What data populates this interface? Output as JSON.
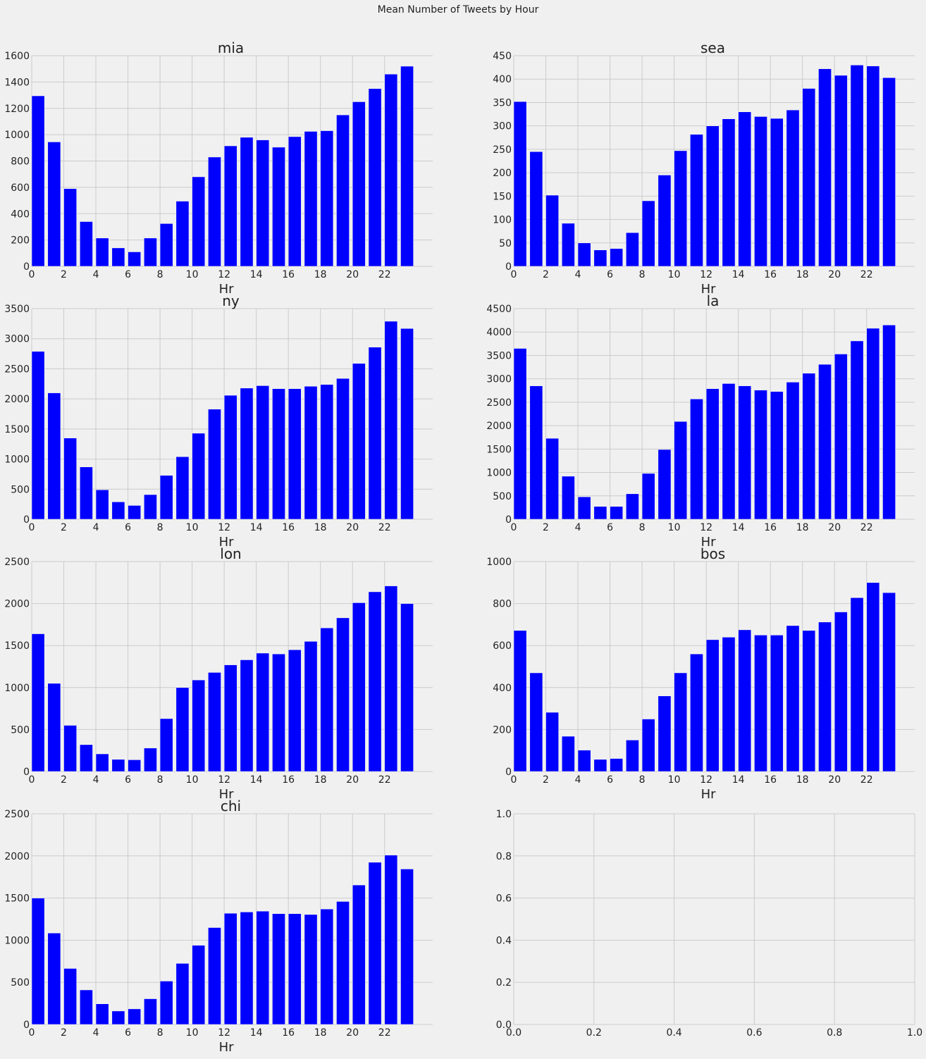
{
  "figure": {
    "suptitle": "Mean Number of Tweets by Hour",
    "bar_color": "#0000ff",
    "background_color": "#f0f0f0",
    "grid_color": "#cbcbcb"
  },
  "chart_data": [
    {
      "type": "bar",
      "title": "mia",
      "xlabel": "Hr",
      "ylabel": "",
      "x": [
        0,
        1,
        2,
        3,
        4,
        5,
        6,
        7,
        8,
        9,
        10,
        11,
        12,
        13,
        14,
        15,
        16,
        17,
        18,
        19,
        20,
        21,
        22,
        23
      ],
      "values": [
        1295,
        945,
        590,
        340,
        215,
        140,
        110,
        215,
        325,
        495,
        680,
        830,
        915,
        980,
        960,
        905,
        985,
        1025,
        1030,
        1150,
        1250,
        1350,
        1460,
        1520
      ],
      "xlim": [
        0,
        25
      ],
      "ylim": [
        0,
        1600
      ],
      "xticks": [
        0,
        2,
        4,
        6,
        8,
        10,
        12,
        14,
        16,
        18,
        20,
        22
      ],
      "yticks": [
        0,
        200,
        400,
        600,
        800,
        1000,
        1200,
        1400,
        1600
      ],
      "grid": true
    },
    {
      "type": "bar",
      "title": "sea",
      "xlabel": "Hr",
      "ylabel": "",
      "x": [
        0,
        1,
        2,
        3,
        4,
        5,
        6,
        7,
        8,
        9,
        10,
        11,
        12,
        13,
        14,
        15,
        16,
        17,
        18,
        19,
        20,
        21,
        22,
        23
      ],
      "values": [
        352,
        245,
        152,
        92,
        50,
        35,
        38,
        72,
        140,
        195,
        247,
        282,
        300,
        315,
        330,
        320,
        316,
        334,
        380,
        422,
        408,
        430,
        428,
        403
      ],
      "xlim": [
        0,
        25
      ],
      "ylim": [
        0,
        450
      ],
      "xticks": [
        0,
        2,
        4,
        6,
        8,
        10,
        12,
        14,
        16,
        18,
        20,
        22
      ],
      "yticks": [
        0,
        50,
        100,
        150,
        200,
        250,
        300,
        350,
        400,
        450
      ],
      "grid": true
    },
    {
      "type": "bar",
      "title": "ny",
      "xlabel": "Hr",
      "ylabel": "",
      "x": [
        0,
        1,
        2,
        3,
        4,
        5,
        6,
        7,
        8,
        9,
        10,
        11,
        12,
        13,
        14,
        15,
        16,
        17,
        18,
        19,
        20,
        21,
        22,
        23
      ],
      "values": [
        2790,
        2100,
        1350,
        870,
        490,
        290,
        230,
        410,
        730,
        1040,
        1430,
        1830,
        2060,
        2180,
        2220,
        2170,
        2170,
        2210,
        2240,
        2340,
        2590,
        2860,
        3290,
        3170
      ],
      "xlim": [
        0,
        25
      ],
      "ylim": [
        0,
        3500
      ],
      "xticks": [
        0,
        2,
        4,
        6,
        8,
        10,
        12,
        14,
        16,
        18,
        20,
        22
      ],
      "yticks": [
        0,
        500,
        1000,
        1500,
        2000,
        2500,
        3000,
        3500
      ],
      "grid": true
    },
    {
      "type": "bar",
      "title": "la",
      "xlabel": "Hr",
      "ylabel": "",
      "x": [
        0,
        1,
        2,
        3,
        4,
        5,
        6,
        7,
        8,
        9,
        10,
        11,
        12,
        13,
        14,
        15,
        16,
        17,
        18,
        19,
        20,
        21,
        22,
        23
      ],
      "values": [
        3650,
        2850,
        1730,
        920,
        480,
        275,
        275,
        545,
        980,
        1490,
        2090,
        2570,
        2790,
        2900,
        2850,
        2760,
        2730,
        2930,
        3120,
        3310,
        3530,
        3810,
        4080,
        4150
      ],
      "xlim": [
        0,
        25
      ],
      "ylim": [
        0,
        4500
      ],
      "xticks": [
        0,
        2,
        4,
        6,
        8,
        10,
        12,
        14,
        16,
        18,
        20,
        22
      ],
      "yticks": [
        0,
        500,
        1000,
        1500,
        2000,
        2500,
        3000,
        3500,
        4000,
        4500
      ],
      "grid": true
    },
    {
      "type": "bar",
      "title": "lon",
      "xlabel": "Hr",
      "ylabel": "",
      "x": [
        0,
        1,
        2,
        3,
        4,
        5,
        6,
        7,
        8,
        9,
        10,
        11,
        12,
        13,
        14,
        15,
        16,
        17,
        18,
        19,
        20,
        21,
        22,
        23
      ],
      "values": [
        1640,
        1050,
        550,
        320,
        210,
        145,
        140,
        280,
        630,
        1000,
        1090,
        1180,
        1270,
        1330,
        1410,
        1400,
        1450,
        1550,
        1710,
        1830,
        2010,
        2140,
        2210,
        2000
      ],
      "xlim": [
        0,
        25
      ],
      "ylim": [
        0,
        2500
      ],
      "xticks": [
        0,
        2,
        4,
        6,
        8,
        10,
        12,
        14,
        16,
        18,
        20,
        22
      ],
      "yticks": [
        0,
        500,
        1000,
        1500,
        2000,
        2500
      ],
      "grid": true
    },
    {
      "type": "bar",
      "title": "bos",
      "xlabel": "Hr",
      "ylabel": "",
      "x": [
        0,
        1,
        2,
        3,
        4,
        5,
        6,
        7,
        8,
        9,
        10,
        11,
        12,
        13,
        14,
        15,
        16,
        17,
        18,
        19,
        20,
        21,
        22,
        23
      ],
      "values": [
        672,
        470,
        282,
        168,
        102,
        58,
        62,
        150,
        250,
        360,
        470,
        560,
        628,
        640,
        675,
        650,
        650,
        695,
        672,
        712,
        760,
        828,
        900,
        852
      ],
      "xlim": [
        0,
        25
      ],
      "ylim": [
        0,
        1000
      ],
      "xticks": [
        0,
        2,
        4,
        6,
        8,
        10,
        12,
        14,
        16,
        18,
        20,
        22
      ],
      "yticks": [
        0,
        200,
        400,
        600,
        800,
        1000
      ],
      "grid": true
    },
    {
      "type": "bar",
      "title": "chi",
      "xlabel": "Hr",
      "ylabel": "",
      "x": [
        0,
        1,
        2,
        3,
        4,
        5,
        6,
        7,
        8,
        9,
        10,
        11,
        12,
        13,
        14,
        15,
        16,
        17,
        18,
        19,
        20,
        21,
        22,
        23
      ],
      "values": [
        1500,
        1085,
        665,
        410,
        245,
        160,
        185,
        305,
        515,
        725,
        940,
        1150,
        1320,
        1335,
        1345,
        1315,
        1315,
        1305,
        1370,
        1460,
        1655,
        1925,
        2010,
        1845
      ],
      "xlim": [
        0,
        25
      ],
      "ylim": [
        0,
        2500
      ],
      "xticks": [
        0,
        2,
        4,
        6,
        8,
        10,
        12,
        14,
        16,
        18,
        20,
        22
      ],
      "yticks": [
        0,
        500,
        1000,
        1500,
        2000,
        2500
      ],
      "grid": true
    },
    {
      "type": "bar",
      "title": "",
      "xlabel": "",
      "ylabel": "",
      "x": [],
      "values": [],
      "xlim": [
        0,
        1
      ],
      "ylim": [
        0,
        1
      ],
      "xticks": [
        0.0,
        0.2,
        0.4,
        0.6,
        0.8,
        1.0
      ],
      "yticks": [
        0.0,
        0.2,
        0.4,
        0.6,
        0.8,
        1.0
      ],
      "xtick_labels": [
        "0.0",
        "0.2",
        "0.4",
        "0.6",
        "0.8",
        "1.0"
      ],
      "ytick_labels": [
        "0.0",
        "0.2",
        "0.4",
        "0.6",
        "0.8",
        "1.0"
      ],
      "grid": true
    }
  ]
}
